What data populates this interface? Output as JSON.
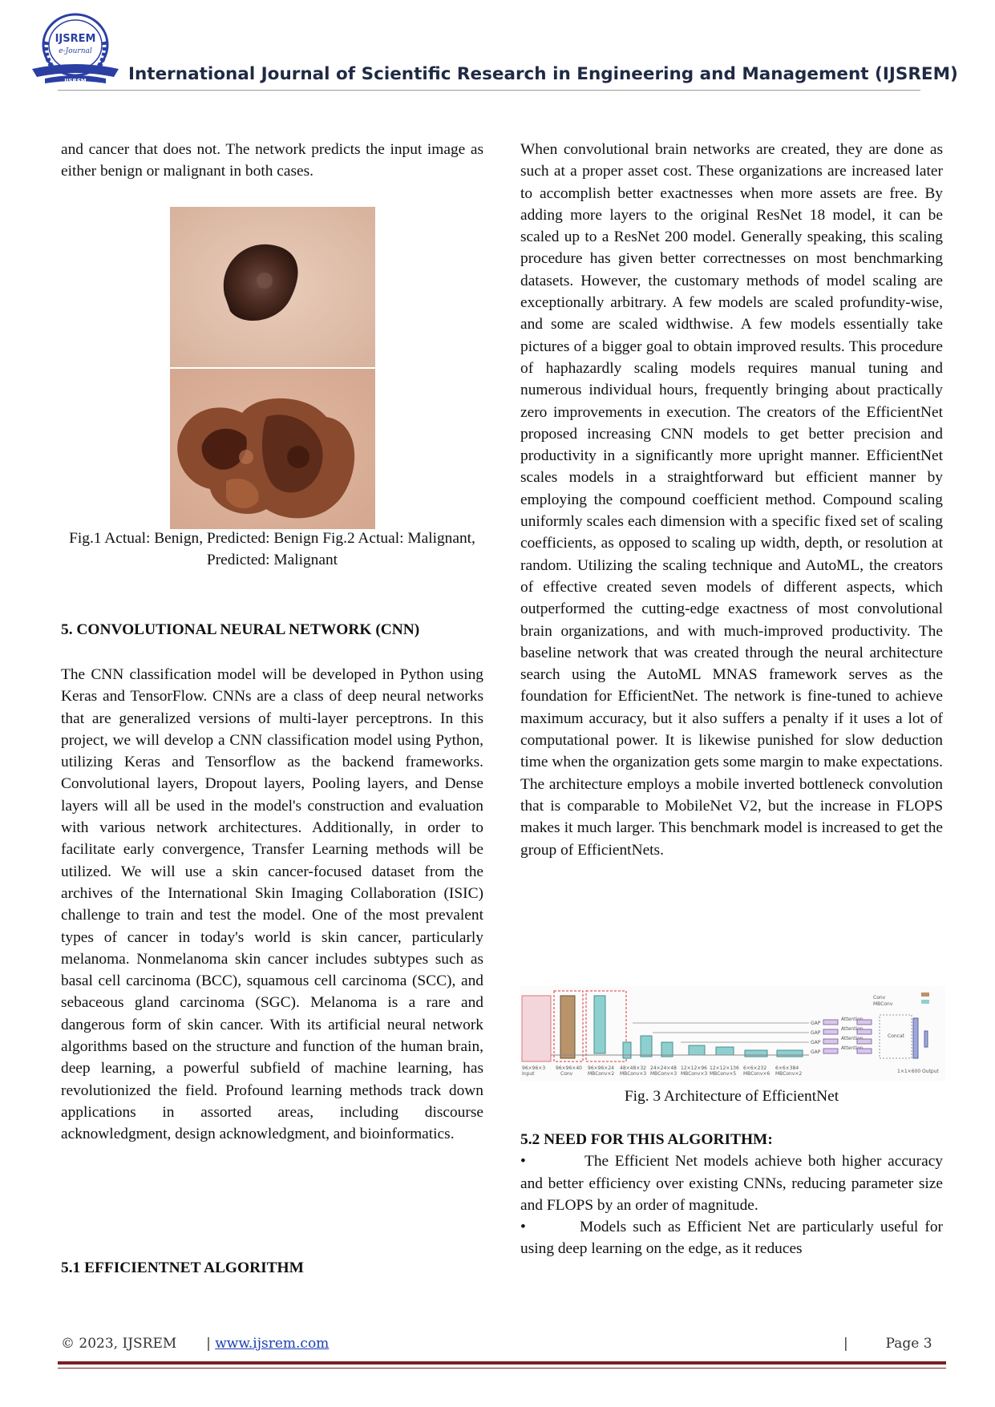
{
  "header": {
    "logo_text_top": "IJSREM",
    "logo_text_mid": "e-Journal",
    "logo_text_bottom": "IJSREM",
    "journal_title": "International Journal of Scientific Research in Engineering and Management (IJSREM)"
  },
  "left_column": {
    "p_intro": "and cancer that does not. The network predicts the input image as either benign or malignant in both cases.",
    "fig_caption": "Fig.1 Actual: Benign, Predicted: Benign        Fig.2 Actual: Malignant, Predicted: Malignant",
    "section5_heading": "5. CONVOLUTIONAL NEURAL NETWORK (CNN)",
    "section5_text": "The CNN classification model will be developed in Python using Keras and TensorFlow. CNNs are a class of deep neural networks that are generalized versions of multi-layer perceptrons. In this project, we will develop a CNN classification model using Python, utilizing Keras and Tensorflow as the backend frameworks. Convolutional layers, Dropout layers, Pooling layers, and Dense layers will all be used in the model's construction and evaluation with various network architectures. Additionally, in order to facilitate early convergence, Transfer Learning methods will be utilized. We will use a skin cancer-focused dataset from the archives of the International Skin Imaging Collaboration (ISIC) challenge to train and test the model. One of the most prevalent types of cancer in today's world is skin cancer, particularly melanoma. Nonmelanoma skin cancer includes subtypes such as basal cell carcinoma (BCC), squamous cell carcinoma (SCC), and sebaceous gland carcinoma (SGC). Melanoma is a rare and dangerous form of skin cancer. With its artificial neural network algorithms based on the structure and function of the human brain, deep learning, a powerful subfield of machine learning, has revolutionized the field. Profound learning methods track down applications in assorted areas, including discourse acknowledgment, design acknowledgment, and bioinformatics.",
    "section51_heading": "5.1 EFFICIENTNET ALGORITHM"
  },
  "right_column": {
    "p_main": "When convolutional brain networks are created, they are done as such at a proper asset cost. These organizations are increased later to accomplish better exactnesses when more assets are free. By adding more layers to the original ResNet 18 model, it can be scaled up to a ResNet 200 model. Generally speaking, this scaling procedure has given better correctnesses on most benchmarking datasets. However, the customary methods of model scaling are exceptionally arbitrary. A few models are scaled profundity-wise, and some are scaled widthwise. A few models essentially take pictures of a bigger goal to obtain improved results. This procedure of haphazardly scaling models requires manual tuning and numerous individual hours, frequently bringing about practically zero improvements in execution. The creators of the EfficientNet proposed increasing CNN models to get better precision and productivity in a significantly more upright manner. EfficientNet scales models in a straightforward but efficient manner by employing the compound coefficient method. Compound scaling uniformly scales each dimension with a specific fixed set of scaling coefficients, as opposed to scaling up width, depth, or resolution at random. Utilizing the scaling technique and AutoML, the creators of effective created seven models of different aspects, which outperformed the cutting-edge exactness of most convolutional brain organizations, and with much-improved productivity. The baseline network that was created through the neural architecture search using the AutoML MNAS framework serves as the foundation for EfficientNet. The network is fine-tuned to achieve maximum accuracy, but it also suffers a penalty if it uses a lot of computational power. It is likewise punished for slow deduction time when the organization gets some margin to make expectations. The architecture employs a mobile inverted bottleneck convolution that is comparable to MobileNet V2, but the increase in FLOPS makes it much larger. This benchmark model is increased to get the group of EfficientNets.",
    "fig3_caption": "Fig. 3 Architecture of EfficientNet",
    "fig3_labels": {
      "legend_conv": "Conv",
      "legend_mbconv": "MBConv",
      "input": "96×96×3\nInput",
      "l1": "96×96×40\nConv",
      "l2": "96×96×24\nMBConv×2",
      "l3": "48×48×32\nMBConv×3",
      "l4": "24×24×48\nMBConv×3",
      "l5": "12×12×96\nMBConv×3",
      "l6": "12×12×136\nMBConv×5",
      "l7": "6×6×232\nMBConv×6",
      "l8": "6×6×384\nMBConv×2",
      "output": "1×1×600 Output",
      "gap": "GAP",
      "attention": "Attention",
      "concat": "Concat"
    },
    "section52_heading": "5.2 NEED FOR THIS ALGORITHM:",
    "bullet1": "The Efficient Net models achieve both higher accuracy and better efficiency over existing CNNs, reducing parameter size and FLOPS by an order of magnitude.",
    "bullet2": "Models such as Efficient Net are particularly useful for using deep learning on the edge, as it reduces",
    "bullet_symbol": "•"
  },
  "footer": {
    "copyright": "© 2023, IJSREM",
    "separator": "|",
    "website": "www.ijsrem.com",
    "page_label": "Page 3"
  },
  "colors": {
    "header_text": "#1f2a44",
    "footer_rule": "#7a1f24",
    "link": "#1b3fb5"
  }
}
